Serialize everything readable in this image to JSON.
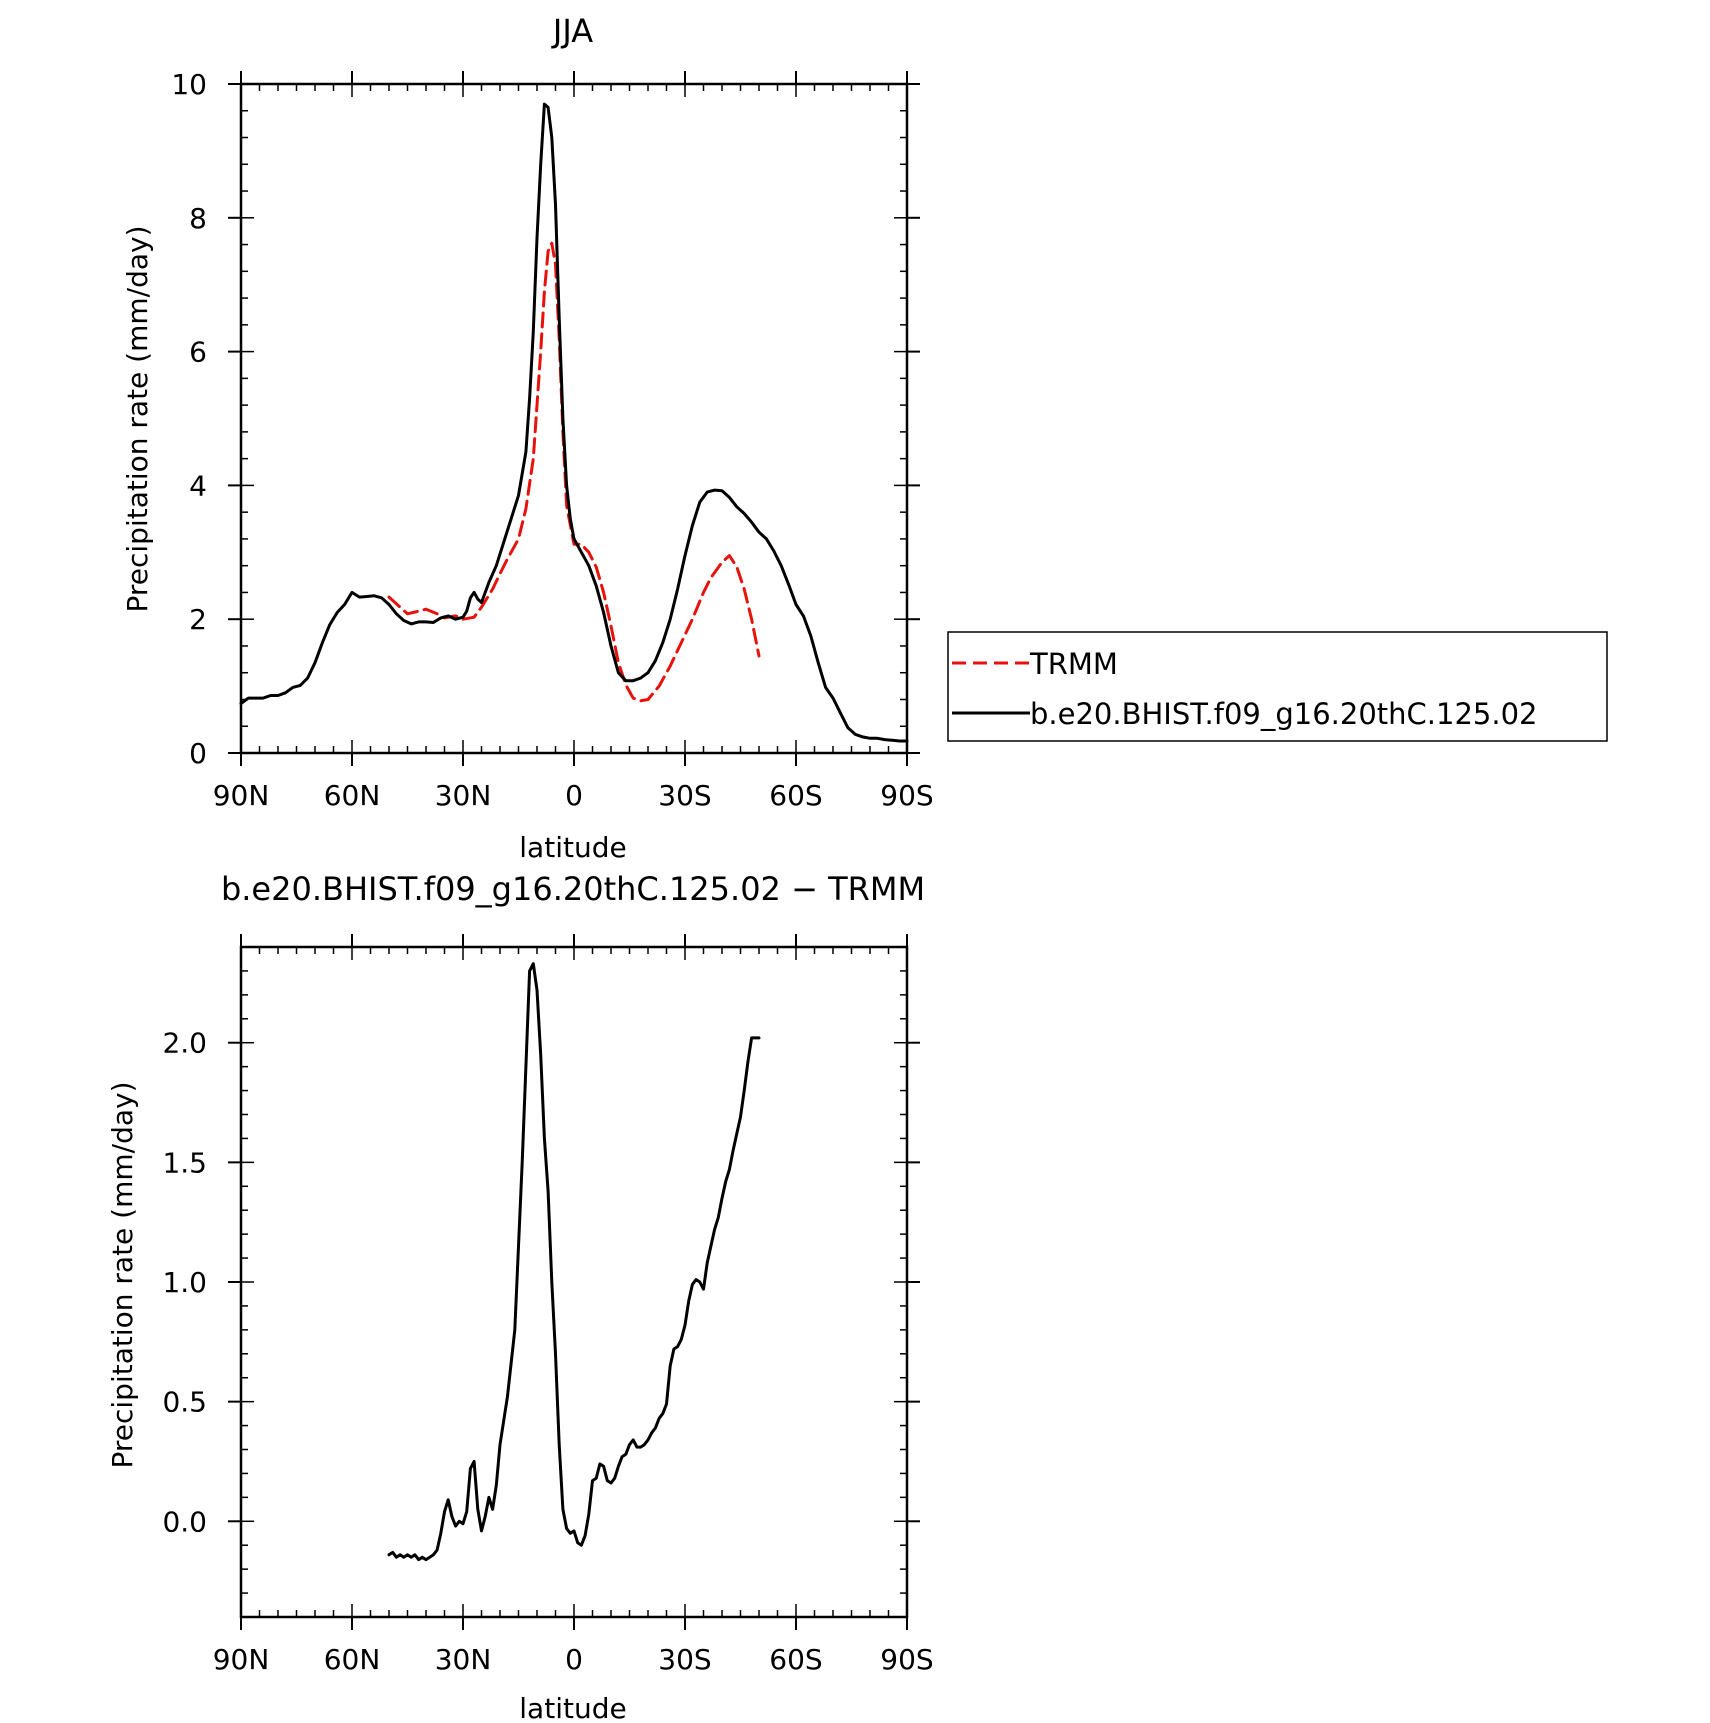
{
  "colors": {
    "model": "#000000",
    "trmm": "#e8120c"
  },
  "chart_data": [
    {
      "type": "line",
      "title": "JJA",
      "xlabel": "latitude",
      "ylabel": "Precipitation rate (mm/day)",
      "xlim": [
        90,
        -90
      ],
      "ylim": [
        0,
        10
      ],
      "x_ticks": [
        90,
        60,
        30,
        0,
        -30,
        -60,
        -90
      ],
      "x_tick_labels": [
        "90N",
        "60N",
        "30N",
        "0",
        "30S",
        "60S",
        "90S"
      ],
      "y_ticks": [
        0,
        2,
        4,
        6,
        8,
        10
      ],
      "y_tick_labels": [
        "0",
        "2",
        "4",
        "6",
        "8",
        "10"
      ],
      "legend": {
        "placement": "right",
        "entries": [
          "TRMM",
          "b.e20.BHIST.f09_g16.20thC.125.02"
        ]
      },
      "series": [
        {
          "name": "TRMM",
          "color": "#e8120c",
          "dash": "dashed",
          "x": [
            50,
            47,
            45,
            42,
            40,
            37,
            35,
            32,
            30,
            27,
            25,
            22,
            20,
            18,
            15,
            13,
            11,
            10,
            9,
            8,
            7,
            6,
            5,
            4,
            3,
            2,
            0,
            -2,
            -4,
            -6,
            -8,
            -10,
            -12,
            -14,
            -16,
            -18,
            -20,
            -23,
            -26,
            -29,
            -32,
            -35,
            -37,
            -40,
            -42,
            -44,
            -46,
            -48,
            -50
          ],
          "y": [
            2.33,
            2.18,
            2.08,
            2.12,
            2.15,
            2.08,
            2.02,
            2.05,
            2.0,
            2.03,
            2.18,
            2.45,
            2.68,
            2.9,
            3.2,
            3.65,
            4.4,
            5.2,
            6.0,
            6.9,
            7.5,
            7.62,
            7.3,
            6.2,
            4.8,
            3.7,
            3.12,
            3.12,
            3.0,
            2.78,
            2.4,
            1.9,
            1.35,
            1.02,
            0.82,
            0.78,
            0.8,
            1.0,
            1.3,
            1.65,
            2.0,
            2.4,
            2.62,
            2.85,
            2.95,
            2.78,
            2.45,
            2.0,
            1.45
          ]
        },
        {
          "name": "b.e20.BHIST.f09_g16.20thC.125.02",
          "color": "#000000",
          "dash": "solid",
          "x": [
            90,
            88,
            86,
            84,
            82,
            80,
            78,
            76,
            74,
            72,
            70,
            68,
            66,
            64,
            62,
            60,
            58,
            56,
            54,
            52,
            50,
            48,
            46,
            44,
            42,
            40,
            38,
            36,
            34,
            32,
            30,
            29,
            28,
            27,
            26,
            25,
            23,
            21,
            19,
            17,
            15,
            13,
            12,
            11,
            10,
            9,
            8,
            7,
            6,
            5,
            4,
            3,
            2,
            1,
            0,
            -2,
            -4,
            -6,
            -8,
            -10,
            -12,
            -14,
            -16,
            -18,
            -20,
            -22,
            -24,
            -26,
            -28,
            -30,
            -32,
            -34,
            -36,
            -38,
            -40,
            -42,
            -44,
            -46,
            -48,
            -50,
            -52,
            -54,
            -56,
            -58,
            -60,
            -62,
            -64,
            -66,
            -68,
            -70,
            -72,
            -74,
            -76,
            -78,
            -80,
            -82,
            -84,
            -86,
            -88,
            -90
          ],
          "y": [
            0.74,
            0.82,
            0.82,
            0.82,
            0.86,
            0.86,
            0.9,
            0.98,
            1.01,
            1.12,
            1.35,
            1.65,
            1.92,
            2.1,
            2.22,
            2.4,
            2.33,
            2.34,
            2.35,
            2.32,
            2.22,
            2.08,
            1.98,
            1.93,
            1.96,
            1.96,
            1.95,
            2.02,
            2.05,
            2.0,
            2.03,
            2.12,
            2.32,
            2.4,
            2.3,
            2.25,
            2.55,
            2.8,
            3.15,
            3.5,
            3.85,
            4.5,
            5.3,
            6.3,
            7.7,
            8.8,
            9.7,
            9.65,
            9.2,
            8.2,
            6.5,
            5.0,
            4.0,
            3.5,
            3.2,
            3.0,
            2.8,
            2.5,
            2.1,
            1.6,
            1.2,
            1.08,
            1.08,
            1.12,
            1.2,
            1.38,
            1.65,
            2.0,
            2.45,
            2.95,
            3.4,
            3.75,
            3.9,
            3.93,
            3.92,
            3.82,
            3.68,
            3.58,
            3.45,
            3.3,
            3.2,
            3.02,
            2.8,
            2.52,
            2.22,
            2.05,
            1.75,
            1.35,
            0.98,
            0.82,
            0.6,
            0.38,
            0.28,
            0.24,
            0.22,
            0.22,
            0.2,
            0.19,
            0.18,
            0.18
          ]
        }
      ]
    },
    {
      "type": "line",
      "title": "b.e20.BHIST.f09_g16.20thC.125.02 − TRMM",
      "xlabel": "latitude",
      "ylabel": "Precipitation rate (mm/day)",
      "xlim": [
        90,
        -90
      ],
      "ylim": [
        -0.4,
        2.4
      ],
      "x_ticks": [
        90,
        60,
        30,
        0,
        -30,
        -60,
        -90
      ],
      "x_tick_labels": [
        "90N",
        "60N",
        "30N",
        "0",
        "30S",
        "60S",
        "90S"
      ],
      "y_ticks": [
        0.0,
        0.5,
        1.0,
        1.5,
        2.0
      ],
      "y_tick_labels": [
        "0.0",
        "0.5",
        "1.0",
        "1.5",
        "2.0"
      ],
      "series": [
        {
          "color": "#000000",
          "dash": "solid",
          "x": [
            50,
            49,
            48,
            47,
            46,
            45,
            44,
            43,
            42,
            41,
            40,
            39,
            38,
            37,
            36,
            35,
            34,
            33,
            32,
            31,
            30,
            29,
            28,
            27,
            26,
            25,
            24,
            23,
            22,
            21,
            20,
            19,
            18,
            16,
            14,
            12,
            11,
            10,
            9,
            8,
            7,
            6,
            5,
            4,
            3,
            2,
            1,
            0,
            -1,
            -2,
            -3,
            -4,
            -5,
            -6,
            -7,
            -8,
            -9,
            -10,
            -11,
            -12,
            -13,
            -14,
            -15,
            -16,
            -17,
            -18,
            -19,
            -20,
            -21,
            -22,
            -23,
            -24,
            -25,
            -26,
            -27,
            -28,
            -29,
            -30,
            -31,
            -32,
            -33,
            -34,
            -35,
            -36,
            -37,
            -38,
            -39,
            -40,
            -41,
            -42,
            -43,
            -44,
            -45,
            -46,
            -47,
            -48,
            -49,
            -50
          ],
          "y": [
            -0.14,
            -0.13,
            -0.15,
            -0.14,
            -0.15,
            -0.14,
            -0.15,
            -0.14,
            -0.16,
            -0.15,
            -0.16,
            -0.15,
            -0.14,
            -0.12,
            -0.05,
            0.04,
            0.09,
            0.02,
            -0.02,
            0.0,
            -0.01,
            0.04,
            0.22,
            0.25,
            0.05,
            -0.04,
            0.02,
            0.1,
            0.05,
            0.15,
            0.32,
            0.42,
            0.52,
            0.8,
            1.5,
            2.3,
            2.33,
            2.22,
            1.95,
            1.6,
            1.38,
            1.0,
            0.7,
            0.32,
            0.05,
            -0.03,
            -0.05,
            -0.04,
            -0.09,
            -0.1,
            -0.06,
            0.03,
            0.17,
            0.18,
            0.24,
            0.23,
            0.17,
            0.16,
            0.18,
            0.23,
            0.27,
            0.28,
            0.32,
            0.34,
            0.31,
            0.31,
            0.32,
            0.34,
            0.37,
            0.39,
            0.43,
            0.45,
            0.49,
            0.65,
            0.72,
            0.73,
            0.76,
            0.82,
            0.92,
            0.99,
            1.01,
            1.0,
            0.97,
            1.08,
            1.15,
            1.22,
            1.27,
            1.35,
            1.42,
            1.47,
            1.55,
            1.62,
            1.69,
            1.8,
            1.92,
            2.02,
            2.02,
            2.02
          ]
        }
      ]
    }
  ]
}
